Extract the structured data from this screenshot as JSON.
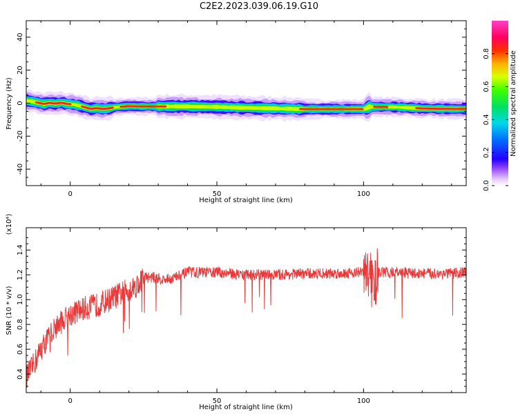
{
  "title": "C2E2.2023.039.06.19.G10",
  "chart_data": [
    {
      "type": "heatmap",
      "name": "spectrogram",
      "xlabel": "Height of straight line (km)",
      "ylabel": "Frequency (Hz)",
      "xlim": [
        -15,
        135
      ],
      "ylim": [
        -50,
        50
      ],
      "x_ticks": [
        "0",
        "50",
        "100"
      ],
      "y_ticks": [
        "40",
        "20",
        "0",
        "-20",
        "-40"
      ],
      "colorbar": {
        "label": "Normalized spectral amplitude",
        "range": [
          0,
          1
        ],
        "ticks": [
          "0.0",
          "0.2",
          "0.4",
          "0.6",
          "0.8"
        ]
      },
      "ridge_center_hz": {
        "x": [
          -15,
          -13,
          -11,
          -9,
          -7,
          -5,
          -3,
          -1,
          1,
          3,
          5,
          7,
          9,
          11,
          13,
          15,
          20,
          25,
          30,
          40,
          50,
          60,
          70,
          80,
          90,
          100,
          101,
          102,
          110,
          120,
          130,
          135
        ],
        "y": [
          1.5,
          1.0,
          0.3,
          -0.5,
          0.2,
          -0.3,
          0.3,
          -0.5,
          -0.7,
          -1.5,
          -2.5,
          -3.5,
          -3.0,
          -3.5,
          -3.2,
          -2.5,
          -1.8,
          -2.0,
          -2.0,
          -2.0,
          -2.3,
          -2.8,
          -3.2,
          -3.6,
          -3.6,
          -3.6,
          -3.0,
          -2.2,
          -2.3,
          -3.2,
          -3.5,
          -3.5
        ]
      }
    },
    {
      "type": "line",
      "name": "snr",
      "xlabel": "Height of straight line (km)",
      "ylabel": "SNR (10 * v/v)",
      "y_scale_label": "(x10⁴)",
      "xlim": [
        -15,
        135
      ],
      "ylim": [
        0.25,
        1.58
      ],
      "x_ticks": [
        "0",
        "50",
        "100"
      ],
      "y_ticks": [
        "0.4",
        "0.6",
        "0.8",
        "1.0",
        "1.2",
        "1.4"
      ],
      "color": "#e83a3a",
      "x": [
        -15,
        -13,
        -10,
        -5,
        0,
        5,
        10,
        15,
        20,
        23,
        25,
        28,
        32,
        36,
        40,
        50,
        60,
        70,
        80,
        90,
        98,
        100,
        101,
        102,
        103,
        104,
        105,
        110,
        120,
        130,
        135
      ],
      "y": [
        0.38,
        0.45,
        0.6,
        0.78,
        0.88,
        0.93,
        0.96,
        1.02,
        1.08,
        1.12,
        1.18,
        1.18,
        1.16,
        1.18,
        1.22,
        1.22,
        1.2,
        1.2,
        1.21,
        1.21,
        1.22,
        1.22,
        1.18,
        1.25,
        1.1,
        1.15,
        1.22,
        1.22,
        1.21,
        1.21,
        1.22
      ]
    }
  ],
  "colors": {
    "line": "#e83a3a",
    "axis": "#000000"
  }
}
